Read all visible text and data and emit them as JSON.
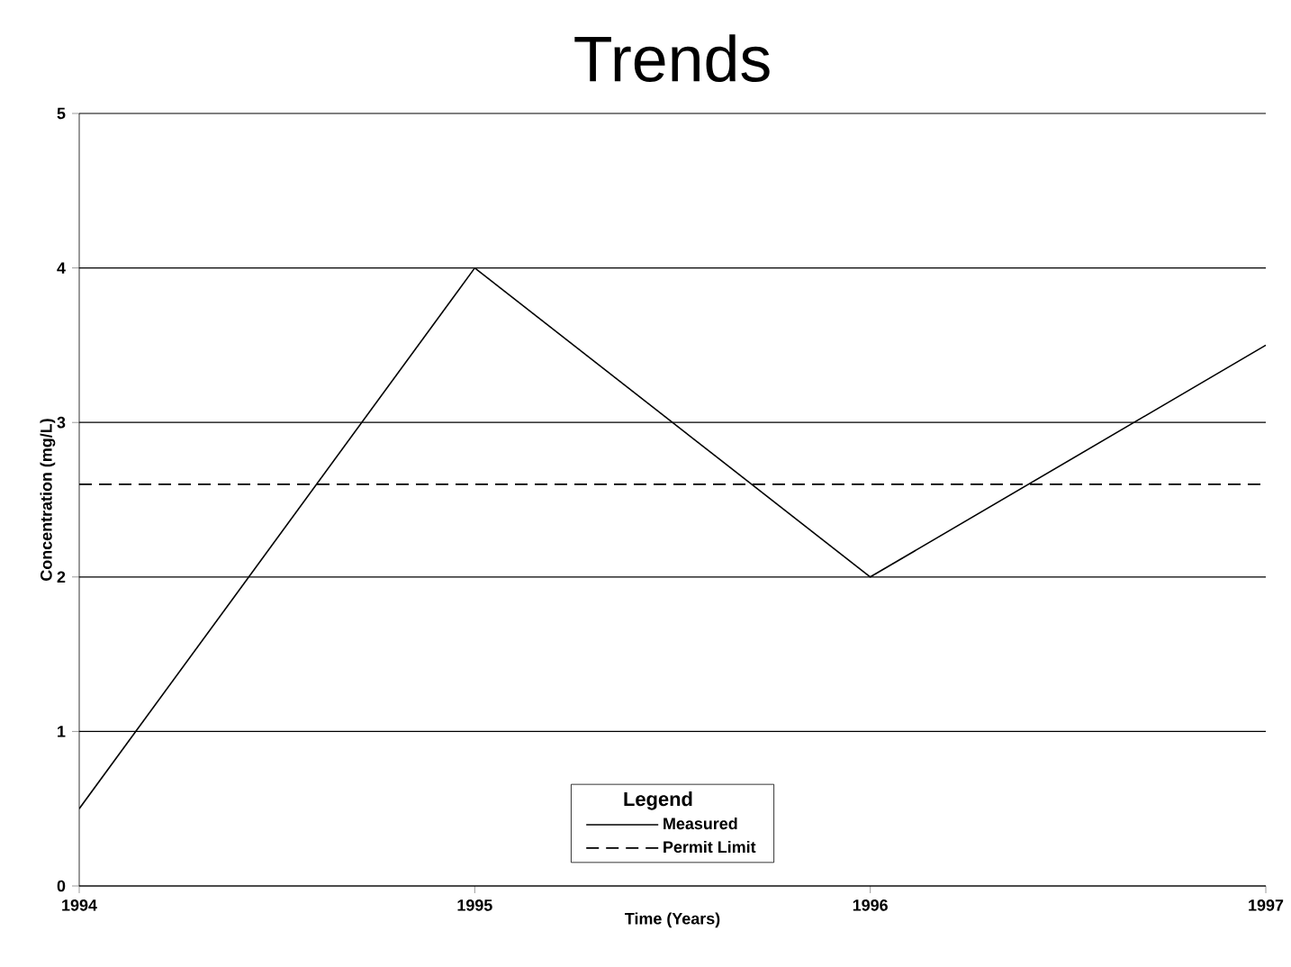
{
  "chart_data": {
    "type": "line",
    "title": "Trends",
    "xlabel": "Time  (Years)",
    "ylabel": "Concentration  (mg/L)",
    "legend_title": "Legend",
    "x": [
      1994,
      1995,
      1996,
      1997
    ],
    "series": [
      {
        "name": "Measured",
        "color": "#000000",
        "line_style": "solid",
        "values": [
          0.5,
          4,
          2,
          3.5
        ]
      },
      {
        "name": "Permit Limit",
        "color": "#000000",
        "line_style": "dashed",
        "values": [
          2.6,
          2.6,
          2.6,
          2.6
        ]
      }
    ],
    "xlim": [
      1994,
      1997
    ],
    "xticks": [
      1994,
      1995,
      1996,
      1997
    ],
    "ylim": [
      0,
      5
    ],
    "yticks": [
      0,
      1,
      2,
      3,
      4,
      5
    ],
    "grid": "y",
    "legend": "bottom",
    "marker": "none"
  }
}
